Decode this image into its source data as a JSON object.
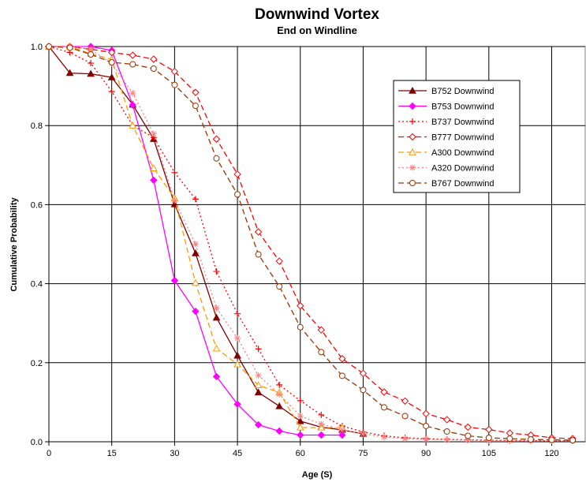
{
  "chart_data": {
    "type": "line",
    "title": "Downwind Vortex",
    "subtitle": "End on Windline",
    "xlabel": "Age (S)",
    "ylabel": "Cumulative Probability",
    "xlim": [
      0,
      128
    ],
    "ylim": [
      0,
      1.0
    ],
    "xticks": [
      0,
      15,
      30,
      45,
      60,
      75,
      90,
      105,
      120
    ],
    "xtick_labels": [
      "0",
      "15",
      "30",
      "45",
      "60",
      "75",
      "90",
      "105",
      "120"
    ],
    "yticks": [
      0,
      0.2,
      0.4,
      0.6,
      0.8,
      1.0
    ],
    "ytick_labels": [
      "0.0",
      "0.2",
      "0.4",
      "0.6",
      "0.8",
      "1.0"
    ],
    "grid": true,
    "legend_position": "top-right",
    "series": [
      {
        "name": "B752 Downwind",
        "color": "#800000",
        "dash": "solid",
        "marker": "triangle-filled",
        "x": [
          0,
          5,
          10,
          15,
          20,
          25,
          30,
          35,
          40,
          45,
          50,
          55,
          60,
          65,
          70,
          75
        ],
        "y": [
          1.0,
          0.933,
          0.931,
          0.922,
          0.853,
          0.766,
          0.601,
          0.477,
          0.314,
          0.218,
          0.125,
          0.09,
          0.052,
          0.037,
          0.03,
          0.02
        ]
      },
      {
        "name": "B753 Downwind",
        "color": "#ff00ff",
        "dash": "solid",
        "marker": "diamond-filled",
        "x": [
          0,
          5,
          10,
          15,
          20,
          25,
          30,
          35,
          40,
          45,
          50,
          55,
          60,
          65,
          70
        ],
        "y": [
          1.0,
          1.0,
          1.0,
          0.99,
          0.852,
          0.662,
          0.408,
          0.33,
          0.165,
          0.095,
          0.043,
          0.027,
          0.017,
          0.017,
          0.017
        ]
      },
      {
        "name": "B737 Downwind",
        "color": "#ff0000",
        "dash": "dotted",
        "marker": "plus",
        "x": [
          0,
          5,
          10,
          15,
          20,
          25,
          30,
          35,
          40,
          45,
          50,
          55,
          60,
          65,
          70,
          75,
          80,
          85,
          90,
          95,
          100,
          105,
          110,
          115,
          120,
          125
        ],
        "y": [
          1.0,
          0.985,
          0.958,
          0.886,
          0.8,
          0.77,
          0.681,
          0.614,
          0.431,
          0.324,
          0.235,
          0.144,
          0.104,
          0.068,
          0.04,
          0.025,
          0.015,
          0.01,
          0.008,
          0.006,
          0.005,
          0.004,
          0.003,
          0.003,
          0.002,
          0.002
        ]
      },
      {
        "name": "B777 Downwind",
        "color": "#ff0000",
        "dash": "dashed",
        "marker": "diamond-open",
        "x": [
          0,
          5,
          10,
          15,
          20,
          25,
          30,
          35,
          40,
          45,
          50,
          55,
          60,
          65,
          70,
          75,
          80,
          85,
          90,
          95,
          100,
          105,
          110,
          115,
          120,
          125
        ],
        "y": [
          1.0,
          1.0,
          0.993,
          0.985,
          0.978,
          0.968,
          0.937,
          0.884,
          0.766,
          0.677,
          0.531,
          0.457,
          0.344,
          0.283,
          0.21,
          0.173,
          0.126,
          0.103,
          0.071,
          0.056,
          0.037,
          0.031,
          0.022,
          0.017,
          0.01,
          0.008
        ]
      },
      {
        "name": "A300 Downwind",
        "color": "#ff9900",
        "dash": "dashed",
        "marker": "triangle-open",
        "x": [
          0,
          5,
          10,
          15,
          20,
          25,
          30,
          35,
          40,
          45,
          50,
          55,
          60,
          65,
          70
        ],
        "y": [
          1.0,
          1.0,
          0.982,
          0.967,
          0.8,
          0.692,
          0.616,
          0.402,
          0.236,
          0.196,
          0.143,
          0.125,
          0.036,
          0.036,
          0.036
        ]
      },
      {
        "name": "A320 Downwind",
        "color": "#ff8080",
        "dash": "dotted",
        "marker": "asterisk",
        "x": [
          0,
          5,
          10,
          15,
          20,
          25,
          30,
          35,
          40,
          45,
          50,
          55,
          60,
          65,
          70,
          75,
          80,
          85,
          90,
          95,
          100,
          105,
          110,
          115,
          120,
          125
        ],
        "y": [
          1.0,
          1.0,
          0.993,
          0.957,
          0.882,
          0.779,
          0.611,
          0.5,
          0.338,
          0.262,
          0.168,
          0.12,
          0.065,
          0.045,
          0.03,
          0.02,
          0.012,
          0.008,
          0.006,
          0.005,
          0.004,
          0.003,
          0.003,
          0.002,
          0.002,
          0.002
        ]
      },
      {
        "name": "B767 Downwind",
        "color": "#993300",
        "dash": "dashed",
        "marker": "circle-open",
        "x": [
          0,
          5,
          10,
          15,
          20,
          25,
          30,
          35,
          40,
          45,
          50,
          55,
          60,
          65,
          70,
          75,
          80,
          85,
          90,
          95,
          100,
          105,
          110,
          115,
          120,
          125
        ],
        "y": [
          1.0,
          0.997,
          0.98,
          0.96,
          0.955,
          0.944,
          0.903,
          0.85,
          0.717,
          0.626,
          0.474,
          0.393,
          0.29,
          0.227,
          0.167,
          0.131,
          0.087,
          0.065,
          0.04,
          0.026,
          0.015,
          0.01,
          0.008,
          0.006,
          0.005,
          0.004
        ]
      }
    ]
  }
}
